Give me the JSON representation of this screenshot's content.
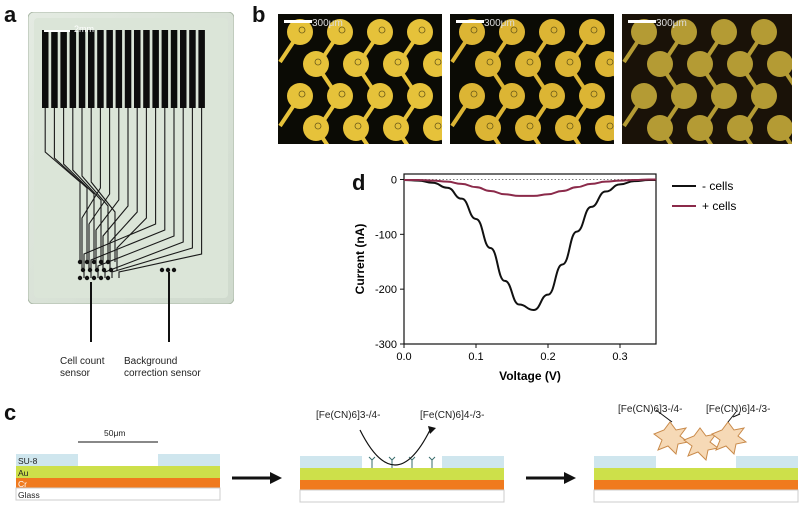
{
  "panels": {
    "a": "a",
    "b": "b",
    "c": "c",
    "d": "d"
  },
  "panel_a": {
    "scale_label": "2mm",
    "cell_count_label": "Cell count sensor",
    "background_label": "Background correction sensor"
  },
  "panel_b": {
    "scale_labels": [
      "300μm",
      "300μm",
      "300μm"
    ]
  },
  "panel_c": {
    "scale_label": "50μm",
    "layers": [
      "SU-8",
      "Au",
      "Cr",
      "Glass"
    ],
    "step2_left_label": "[Fe(CN)6]3-/4-",
    "step2_right_label": "[Fe(CN)6]4-/3-",
    "step3_left_label": "[Fe(CN)6]3-/4-",
    "step3_right_label": "[Fe(CN)6]4-/3-",
    "colors": {
      "su8": "#cfe6ee",
      "au": "#cde04a",
      "cr": "#f07a1e",
      "glass": "#ffffff"
    }
  },
  "chart_data": {
    "type": "line",
    "title": "",
    "xlabel": "Voltage (V)",
    "ylabel": "Current (nA)",
    "xlim": [
      0.0,
      0.35
    ],
    "ylim": [
      -300,
      10
    ],
    "xticks": [
      0.0,
      0.1,
      0.2,
      0.3
    ],
    "yticks": [
      0,
      -100,
      -200,
      -300
    ],
    "xtick_labels": [
      "0.0",
      "0.1",
      "0.2",
      "0.3"
    ],
    "ytick_labels": [
      "0",
      "-100",
      "-200",
      "-300"
    ],
    "legend_position": "right",
    "series": [
      {
        "name": "- cells",
        "color": "#111111",
        "x": [
          0.0,
          0.02,
          0.04,
          0.06,
          0.08,
          0.1,
          0.12,
          0.14,
          0.16,
          0.18,
          0.2,
          0.22,
          0.24,
          0.26,
          0.28,
          0.3,
          0.32,
          0.34,
          0.35
        ],
        "y": [
          -1,
          -2,
          -6,
          -15,
          -35,
          -72,
          -125,
          -185,
          -228,
          -238,
          -210,
          -155,
          -95,
          -50,
          -22,
          -9,
          -3,
          -1,
          -1
        ]
      },
      {
        "name": "+ cells",
        "color": "#8b2a4a",
        "x": [
          0.0,
          0.02,
          0.04,
          0.06,
          0.08,
          0.1,
          0.12,
          0.14,
          0.16,
          0.18,
          0.2,
          0.22,
          0.24,
          0.26,
          0.28,
          0.3,
          0.32,
          0.34,
          0.35
        ],
        "y": [
          -1,
          -1,
          -2,
          -4,
          -8,
          -14,
          -21,
          -27,
          -30,
          -30,
          -27,
          -21,
          -14,
          -8,
          -4,
          -2,
          -1,
          0,
          0
        ]
      }
    ]
  }
}
